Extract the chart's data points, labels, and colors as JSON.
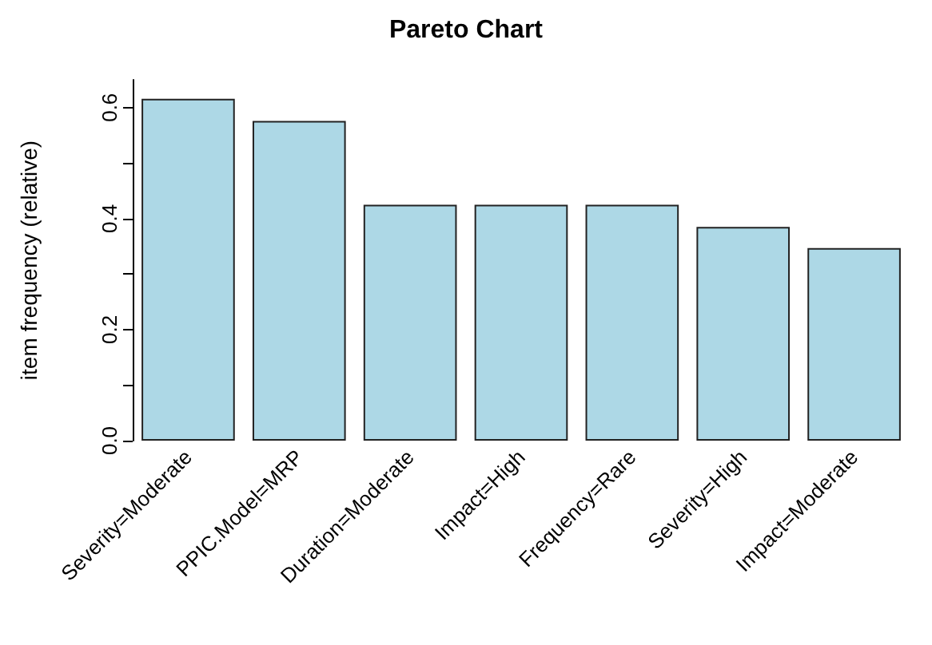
{
  "chart_data": {
    "type": "bar",
    "title": "Pareto Chart",
    "ylabel": "item frequency (relative)",
    "categories": [
      "Severity=Moderate",
      "PPIC.Model=MRP",
      "Duration=Moderate",
      "Impact=High",
      "Frequency=Rare",
      "Severity=High",
      "Impact=Moderate"
    ],
    "values": [
      0.616,
      0.576,
      0.425,
      0.425,
      0.425,
      0.385,
      0.347
    ],
    "color": "#add8e6",
    "ylim": [
      0,
      0.65
    ],
    "yticks": [
      {
        "value": 0,
        "label": "0.0"
      },
      {
        "value": 0.1,
        "label": null
      },
      {
        "value": 0.2,
        "label": "0.2"
      },
      {
        "value": 0.3,
        "label": null
      },
      {
        "value": 0.4,
        "label": "0.4"
      },
      {
        "value": 0.5,
        "label": null
      },
      {
        "value": 0.6,
        "label": "0.6"
      }
    ],
    "grid": false
  }
}
